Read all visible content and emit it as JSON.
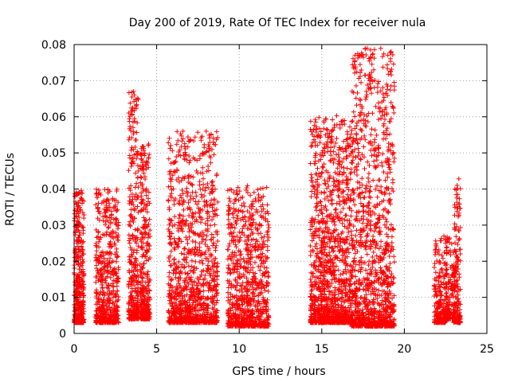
{
  "chart_data": {
    "type": "scatter",
    "title": "Day 200 of 2019, Rate Of TEC Index for receiver nula",
    "xlabel": "GPS time / hours",
    "ylabel": "ROTI / TECUs",
    "xlim": [
      0,
      25
    ],
    "ylim": [
      0,
      0.08
    ],
    "xticks": [
      "0",
      "5",
      "10",
      "15",
      "20",
      "25"
    ],
    "yticks": [
      "0",
      "0.01",
      "0.02",
      "0.03",
      "0.04",
      "0.05",
      "0.06",
      "0.07",
      "0.08"
    ],
    "grid": true,
    "marker": "+",
    "color": "#ff0000",
    "clusters": [
      {
        "x": [
          0.0,
          0.6
        ],
        "ymin": 0.003,
        "ymax": 0.04,
        "n": 380
      },
      {
        "x": [
          1.3,
          2.7
        ],
        "ymin": 0.003,
        "ymax": 0.04,
        "n": 520
      },
      {
        "x": [
          3.3,
          3.9
        ],
        "ymin": 0.004,
        "ymax": 0.067,
        "n": 330
      },
      {
        "x": [
          4.0,
          4.6
        ],
        "ymin": 0.004,
        "ymax": 0.053,
        "n": 320
      },
      {
        "x": [
          5.7,
          8.7
        ],
        "ymin": 0.003,
        "ymax": 0.056,
        "n": 1050
      },
      {
        "x": [
          9.3,
          11.8
        ],
        "ymin": 0.002,
        "ymax": 0.041,
        "n": 820
      },
      {
        "x": [
          14.3,
          16.8
        ],
        "ymin": 0.003,
        "ymax": 0.06,
        "n": 1200
      },
      {
        "x": [
          16.8,
          19.4
        ],
        "ymin": 0.002,
        "ymax": 0.079,
        "n": 1150
      },
      {
        "x": [
          21.8,
          22.6
        ],
        "ymin": 0.003,
        "ymax": 0.027,
        "n": 220
      },
      {
        "x": [
          22.5,
          23.0
        ],
        "ymin": 0.004,
        "ymax": 0.027,
        "n": 120
      },
      {
        "x": [
          23.0,
          23.4
        ],
        "ymin": 0.003,
        "ymax": 0.043,
        "n": 180
      }
    ],
    "outliers": [
      {
        "x": 3.6,
        "y": 0.067
      },
      {
        "x": 3.65,
        "y": 0.0595
      },
      {
        "x": 8.0,
        "y": 0.056
      },
      {
        "x": 8.3,
        "y": 0.055
      },
      {
        "x": 15.9,
        "y": 0.0603
      },
      {
        "x": 17.95,
        "y": 0.0785
      },
      {
        "x": 17.95,
        "y": 0.0765
      },
      {
        "x": 17.9,
        "y": 0.07
      },
      {
        "x": 17.85,
        "y": 0.0528
      },
      {
        "x": 23.3,
        "y": 0.0428
      },
      {
        "x": 23.3,
        "y": 0.0358
      },
      {
        "x": 23.35,
        "y": 0.0233
      },
      {
        "x": 22.5,
        "y": 0.0262
      }
    ]
  }
}
